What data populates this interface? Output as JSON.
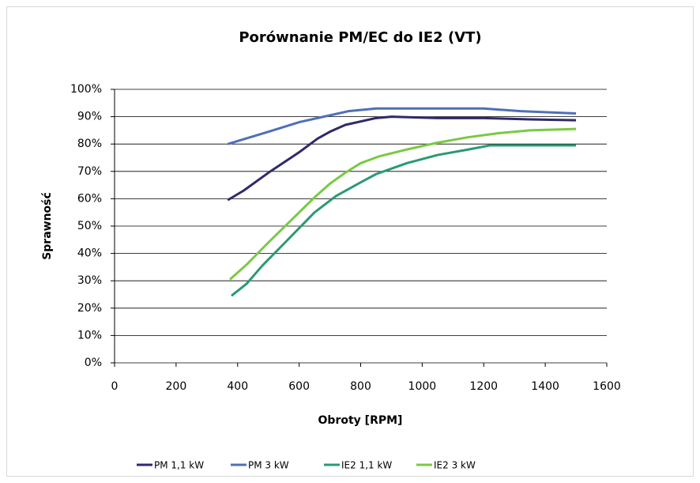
{
  "chart_data": {
    "type": "line",
    "title": "Porównanie PM/EC do IE2 (VT)",
    "xlabel": "Obroty [RPM]",
    "ylabel": "Sprawność",
    "xlim": [
      0,
      1600
    ],
    "xticks": [
      0,
      200,
      400,
      600,
      800,
      1000,
      1200,
      1400,
      1600
    ],
    "ylim": [
      0,
      100
    ],
    "yticks": [
      {
        "value": 0,
        "label": "0%"
      },
      {
        "value": 10,
        "label": "10%"
      },
      {
        "value": 20,
        "label": "20%"
      },
      {
        "value": 30,
        "label": "30%"
      },
      {
        "value": 40,
        "label": "40%"
      },
      {
        "value": 50,
        "label": "50%"
      },
      {
        "value": 60,
        "label": "60%"
      },
      {
        "value": 70,
        "label": "70%"
      },
      {
        "value": 80,
        "label": "80%"
      },
      {
        "value": 90,
        "label": "90%"
      },
      {
        "value": 100,
        "label": "100%"
      }
    ],
    "grid": true,
    "legend": "bottom",
    "series": [
      {
        "name": "PM 1,1 kW",
        "color": "#2e2a6b",
        "x": [
          368,
          420,
          500,
          600,
          660,
          700,
          750,
          850,
          900,
          1050,
          1200,
          1350,
          1500
        ],
        "values": [
          59.5,
          63,
          69.5,
          77,
          82,
          84.5,
          87,
          89.5,
          90,
          89.5,
          89.5,
          89,
          88.7
        ]
      },
      {
        "name": "PM 3 kW",
        "color": "#4f6fb8",
        "x": [
          368,
          500,
          600,
          700,
          760,
          850,
          1000,
          1200,
          1320,
          1500
        ],
        "values": [
          80,
          84.5,
          88,
          90.5,
          92,
          93,
          93,
          93,
          92,
          91.2
        ]
      },
      {
        "name": "IE2 1,1 kW",
        "color": "#2a9a72",
        "x": [
          380,
          430,
          480,
          550,
          650,
          720,
          800,
          850,
          950,
          1050,
          1150,
          1220,
          1500
        ],
        "values": [
          24.5,
          29,
          35.5,
          43.5,
          55,
          61,
          66,
          69,
          73,
          76,
          78,
          79.5,
          79.5
        ]
      },
      {
        "name": "IE2 3 kW",
        "color": "#7ac943",
        "x": [
          375,
          430,
          500,
          600,
          650,
          700,
          750,
          800,
          860,
          950,
          1050,
          1150,
          1250,
          1350,
          1500
        ],
        "values": [
          30.5,
          36,
          44,
          55,
          60.5,
          65.5,
          69.5,
          73,
          75.5,
          78,
          80.5,
          82.5,
          84,
          85,
          85.5
        ]
      }
    ]
  }
}
